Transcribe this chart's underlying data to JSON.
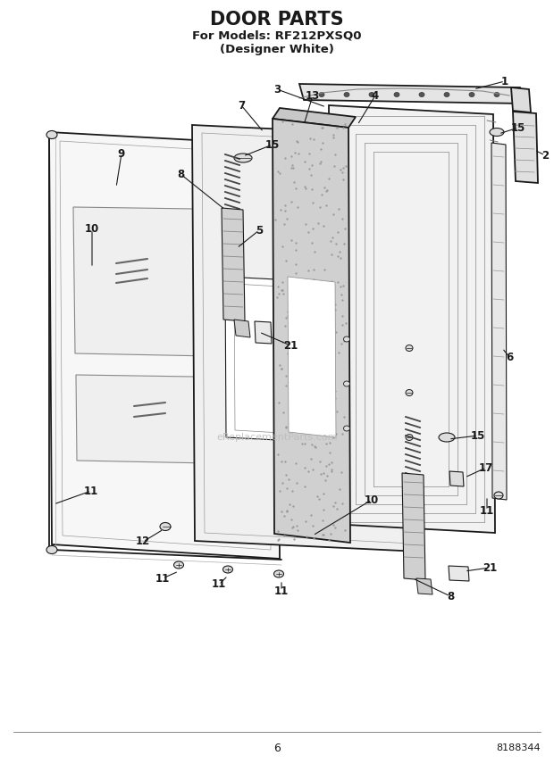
{
  "title": "DOOR PARTS",
  "subtitle1": "For Models: RF212PXSQ0",
  "subtitle2": "(Designer White)",
  "page_number": "6",
  "doc_number": "8188344",
  "watermark": "eReplacementParts.com",
  "bg_color": "#ffffff",
  "lc": "#1a1a1a"
}
